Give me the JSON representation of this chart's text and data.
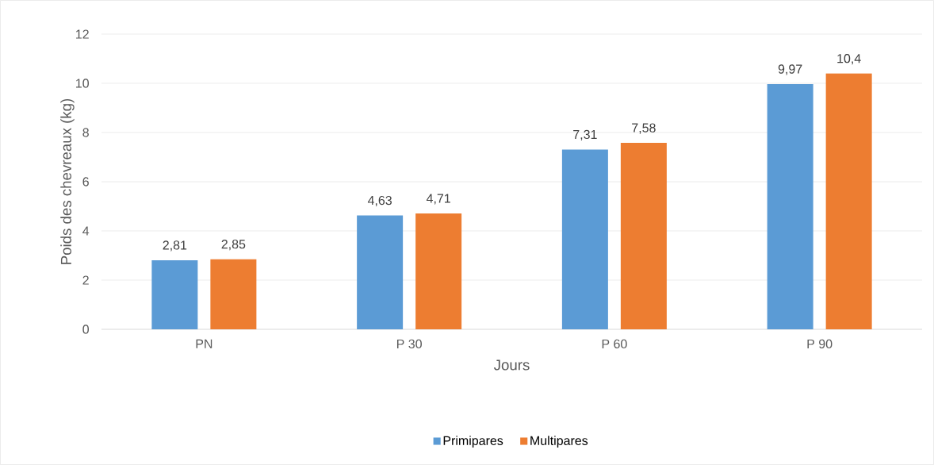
{
  "chart_data": {
    "type": "bar",
    "xlabel": "Jours",
    "ylabel": "Poids des chevreaux (kg)",
    "categories": [
      "PN",
      "P 30",
      "P 60",
      "P 90"
    ],
    "series": [
      {
        "name": "Primipares",
        "color": "#5b9bd5",
        "values": [
          2.81,
          4.63,
          7.31,
          9.97
        ],
        "value_labels": [
          "2,81",
          "4,63",
          "7,31",
          "9,97"
        ]
      },
      {
        "name": "Multipares",
        "color": "#ed7d31",
        "values": [
          2.85,
          4.71,
          7.58,
          10.4
        ],
        "value_labels": [
          "2,85",
          "4,71",
          "7,58",
          "10,4"
        ]
      }
    ],
    "ylim": [
      0,
      12
    ],
    "yticks": [
      0,
      2,
      4,
      6,
      8,
      10,
      12
    ],
    "grid": "y",
    "legend": "bottom"
  }
}
